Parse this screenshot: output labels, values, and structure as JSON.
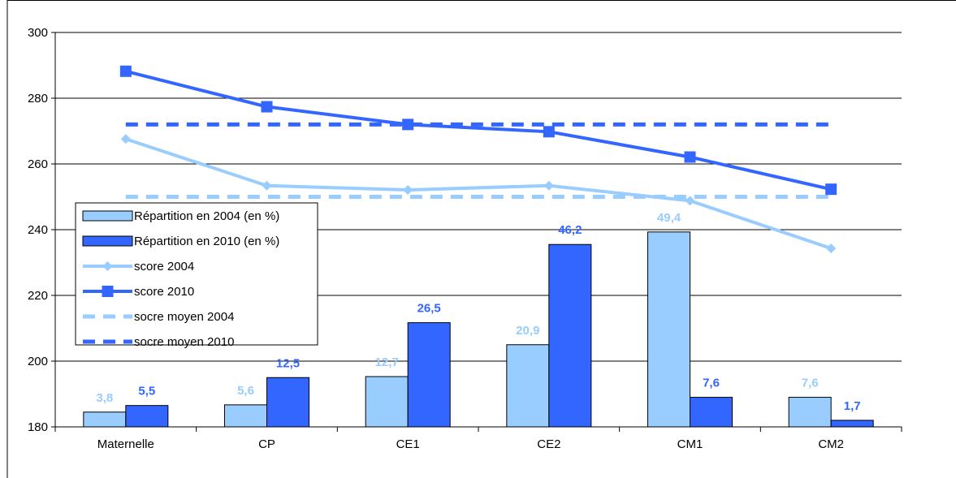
{
  "chart_data": {
    "type": "bar",
    "categories": [
      "Maternelle",
      "CP",
      "CE1",
      "CE2",
      "CM1",
      "CM2"
    ],
    "ylim": [
      180,
      300
    ],
    "yticks": [
      180,
      200,
      220,
      240,
      260,
      280,
      300
    ],
    "grid": true,
    "legend_placement": "left",
    "bar_series": [
      {
        "name": "Répartition en 2004 (en %)",
        "color": "#99ccff",
        "heights": [
          184.5,
          186.7,
          195.3,
          205.0,
          239.3,
          189.0
        ],
        "labels": [
          "3,8",
          "5,6",
          "12,7",
          "20,9",
          "49,4",
          "7,6"
        ]
      },
      {
        "name": "Répartition en 2010 (en %)",
        "color": "#3366ff",
        "heights": [
          186.5,
          195.0,
          211.7,
          235.5,
          189.0,
          182.0
        ],
        "labels": [
          "5,5",
          "12,5",
          "26,5",
          "46,2",
          "7,6",
          "1,7"
        ]
      }
    ],
    "line_series": [
      {
        "name": "score 2004",
        "color": "#99ccff",
        "marker": "diamond",
        "values": [
          267.6,
          253.4,
          252.1,
          253.4,
          248.8,
          234.3
        ]
      },
      {
        "name": "score 2010",
        "color": "#3366ff",
        "marker": "square",
        "values": [
          288.2,
          277.4,
          272.0,
          269.8,
          262.1,
          252.3
        ]
      }
    ],
    "reference_lines": [
      {
        "name": "socre moyen 2004",
        "color": "#99ccff",
        "value": 250
      },
      {
        "name": "socre moyen 2010",
        "color": "#3366ff",
        "value": 272
      }
    ]
  }
}
